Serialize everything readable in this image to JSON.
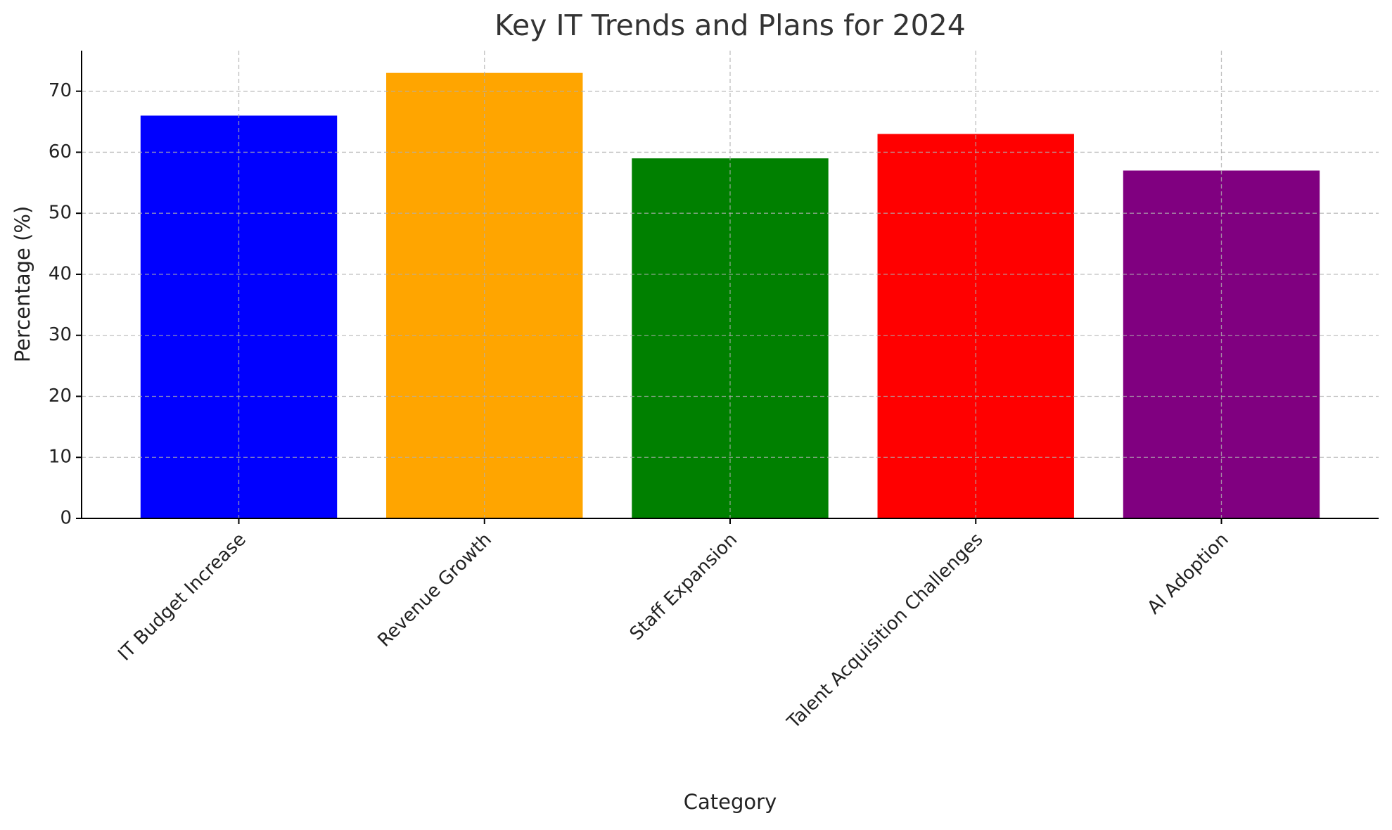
{
  "chart_data": {
    "type": "bar",
    "title": "Key IT Trends and Plans for 2024",
    "x_label": "Category",
    "y_label": "Percentage (%)",
    "categories": [
      "IT Budget Increase",
      "Revenue Growth",
      "Staff Expansion",
      "Talent Acquisition Challenges",
      "AI Adoption"
    ],
    "values": [
      66,
      73,
      59,
      63,
      57
    ],
    "colors": [
      "#0000ff",
      "#ffa500",
      "#008000",
      "#ff0000",
      "#800080"
    ],
    "ylim": [
      0,
      76.65
    ],
    "yticks": [
      0,
      10,
      20,
      30,
      40,
      50,
      60,
      70
    ],
    "grid": true
  }
}
